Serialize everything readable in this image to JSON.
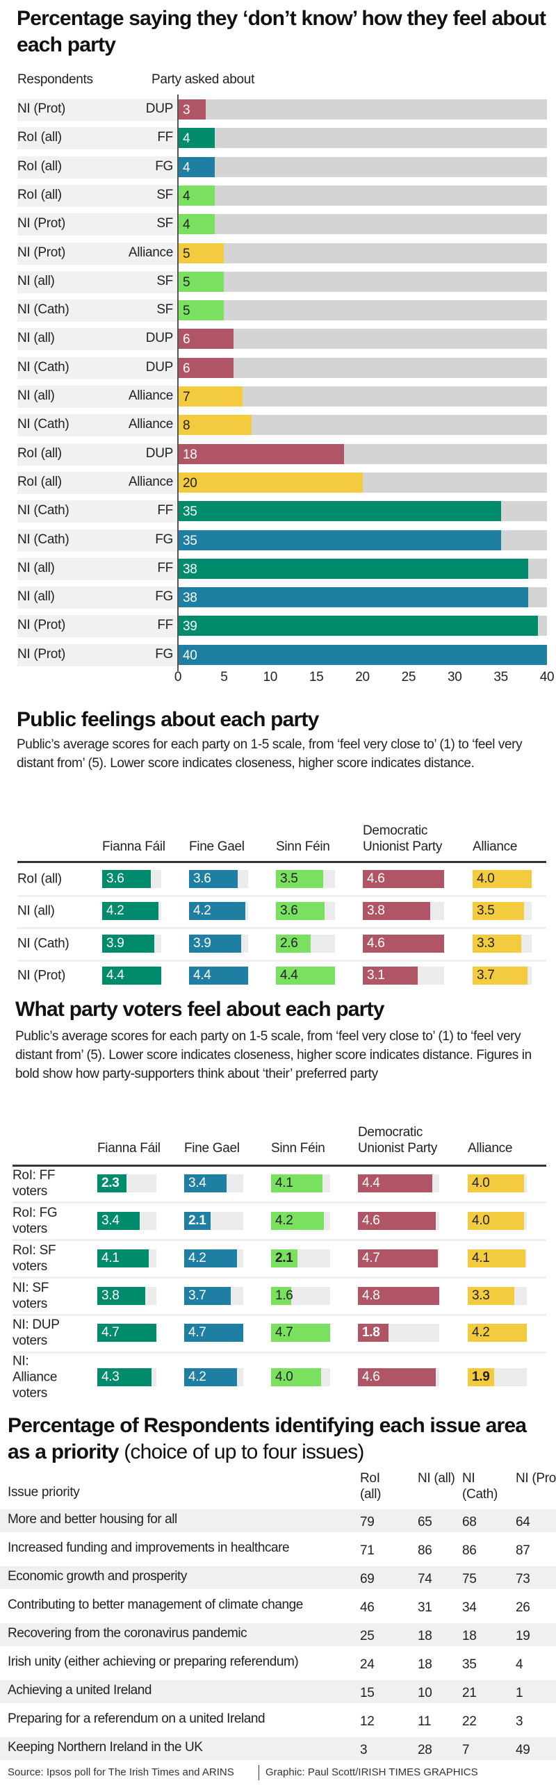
{
  "colors": {
    "FF": "#008c6c",
    "FG": "#1f7fa3",
    "SF": "#7ae05f",
    "DUP": "#b05565",
    "Alliance": "#f2cb3e"
  },
  "chart_data": [
    {
      "type": "bar",
      "title": "Percentage saying they ‘don’t know’ how they feel about each party",
      "header_respondents": "Respondents",
      "header_party": "Party asked about",
      "xlim": [
        0,
        40
      ],
      "xticks": [
        "0",
        "5",
        "10",
        "15",
        "20",
        "25",
        "30",
        "35",
        "40"
      ],
      "grid": false,
      "rows": [
        {
          "respondents": "NI (Prot)",
          "party": "DUP",
          "value": 3
        },
        {
          "respondents": "RoI (all)",
          "party": "FF",
          "value": 4
        },
        {
          "respondents": "RoI (all)",
          "party": "FG",
          "value": 4
        },
        {
          "respondents": "RoI (all)",
          "party": "SF",
          "value": 4
        },
        {
          "respondents": "NI (Prot)",
          "party": "SF",
          "value": 4
        },
        {
          "respondents": "NI (Prot)",
          "party": "Alliance",
          "value": 5
        },
        {
          "respondents": "NI (all)",
          "party": "SF",
          "value": 5
        },
        {
          "respondents": "NI (Cath)",
          "party": "SF",
          "value": 5
        },
        {
          "respondents": "NI (all)",
          "party": "DUP",
          "value": 6
        },
        {
          "respondents": "NI (Cath)",
          "party": "DUP",
          "value": 6
        },
        {
          "respondents": "NI (all)",
          "party": "Alliance",
          "value": 7
        },
        {
          "respondents": "NI (Cath)",
          "party": "Alliance",
          "value": 8
        },
        {
          "respondents": "RoI (all)",
          "party": "DUP",
          "value": 18
        },
        {
          "respondents": "RoI (all)",
          "party": "Alliance",
          "value": 20
        },
        {
          "respondents": "NI (Cath)",
          "party": "FF",
          "value": 35
        },
        {
          "respondents": "NI (Cath)",
          "party": "FG",
          "value": 35
        },
        {
          "respondents": "NI (all)",
          "party": "FF",
          "value": 38
        },
        {
          "respondents": "NI (all)",
          "party": "FG",
          "value": 38
        },
        {
          "respondents": "NI (Prot)",
          "party": "FF",
          "value": 39
        },
        {
          "respondents": "NI (Prot)",
          "party": "FG",
          "value": 40
        }
      ]
    },
    {
      "type": "table",
      "title": "Public feelings about each party",
      "description": "Public’s average scores for each party on 1-5 scale, from ‘feel very close to’ (1) to ‘feel very distant from’ (5). Lower score indicates closeness, higher score indicates distance.",
      "columns": [
        {
          "key": "FF",
          "label": "Fianna Fáil"
        },
        {
          "key": "FG",
          "label": "Fine Gael"
        },
        {
          "key": "SF",
          "label": "Sinn Féin"
        },
        {
          "key": "DUP",
          "label": "Democratic Unionist Party"
        },
        {
          "key": "Alliance",
          "label": "Alliance"
        }
      ],
      "rows": [
        {
          "label": "RoI (all)",
          "values": [
            "3.6",
            "3.6",
            "3.5",
            "4.6",
            "4.0"
          ]
        },
        {
          "label": "NI (all)",
          "values": [
            "4.2",
            "4.2",
            "3.6",
            "3.8",
            "3.5"
          ]
        },
        {
          "label": "NI (Cath)",
          "values": [
            "3.9",
            "3.9",
            "2.6",
            "4.6",
            "3.3"
          ]
        },
        {
          "label": "NI (Prot)",
          "values": [
            "4.4",
            "4.4",
            "4.4",
            "3.1",
            "3.7"
          ]
        }
      ]
    },
    {
      "type": "table",
      "title": "What party voters feel about each party",
      "description": "Public’s average scores for each party on 1-5 scale, from ‘feel very close to’ (1) to ‘feel very distant from’ (5). Lower score indicates closeness, higher score indicates distance. Figures in bold show how party-supporters think about ‘their’ preferred party",
      "columns": [
        {
          "key": "FF",
          "label": "Fianna Fáil"
        },
        {
          "key": "FG",
          "label": "Fine Gael"
        },
        {
          "key": "SF",
          "label": "Sinn Féin"
        },
        {
          "key": "DUP",
          "label": "Democratic Unionist Party"
        },
        {
          "key": "Alliance",
          "label": "Alliance"
        }
      ],
      "rows": [
        {
          "label": "RoI: FF voters",
          "values": [
            "2.3",
            "3.4",
            "4.1",
            "4.4",
            "4.0"
          ],
          "bold": 0
        },
        {
          "label": "RoI: FG voters",
          "values": [
            "3.4",
            "2.1",
            "4.2",
            "4.6",
            "4.0"
          ],
          "bold": 1
        },
        {
          "label": "RoI: SF voters",
          "values": [
            "4.1",
            "4.2",
            "2.1",
            "4.7",
            "4.1"
          ],
          "bold": 2
        },
        {
          "label": "NI: SF voters",
          "values": [
            "3.8",
            "3.7",
            "1.6",
            "4.8",
            "3.3"
          ]
        },
        {
          "label": "NI: DUP voters",
          "values": [
            "4.7",
            "4.7",
            "4.7",
            "1.8",
            "4.2"
          ],
          "bold": 3
        },
        {
          "label": "NI: Alliance voters",
          "values": [
            "4.3",
            "4.2",
            "4.0",
            "4.6",
            "1.9"
          ],
          "bold": 4
        }
      ]
    },
    {
      "type": "table",
      "title_bold": "Percentage of Respondents identifying each issue area as a priority",
      "title_rest": "(choice of up to four issues)",
      "header_issue": "Issue priority",
      "columns": [
        "RoI (all)",
        "NI (all)",
        "NI (Cath)",
        "NI (Prot)"
      ],
      "rows": [
        {
          "issue": "More and better housing for all",
          "values": [
            "79",
            "65",
            "68",
            "64"
          ]
        },
        {
          "issue": "Increased funding and improvements in healthcare",
          "values": [
            "71",
            "86",
            "86",
            "87"
          ]
        },
        {
          "issue": "Economic growth and prosperity",
          "values": [
            "69",
            "74",
            "75",
            "73"
          ]
        },
        {
          "issue": "Contributing to better management of climate change",
          "values": [
            "46",
            "31",
            "34",
            "26"
          ]
        },
        {
          "issue": "Recovering from the coronavirus pandemic",
          "values": [
            "25",
            "18",
            "18",
            "19"
          ]
        },
        {
          "issue": "Irish unity (either achieving or preparing referendum)",
          "values": [
            "24",
            "18",
            "35",
            "4"
          ]
        },
        {
          "issue": "Achieving a united Ireland",
          "values": [
            "15",
            "10",
            "21",
            "1"
          ]
        },
        {
          "issue": "Preparing for a referendum on a united Ireland",
          "values": [
            "12",
            "11",
            "22",
            "3"
          ]
        },
        {
          "issue": "Keeping Northern Ireland in the UK",
          "values": [
            "3",
            "28",
            "7",
            "49"
          ]
        }
      ]
    }
  ],
  "footer": {
    "source": "Source: Ipsos poll for The Irish Times and ARINS",
    "credit": "Graphic: Paul Scott/IRISH TIMES GRAPHICS"
  }
}
